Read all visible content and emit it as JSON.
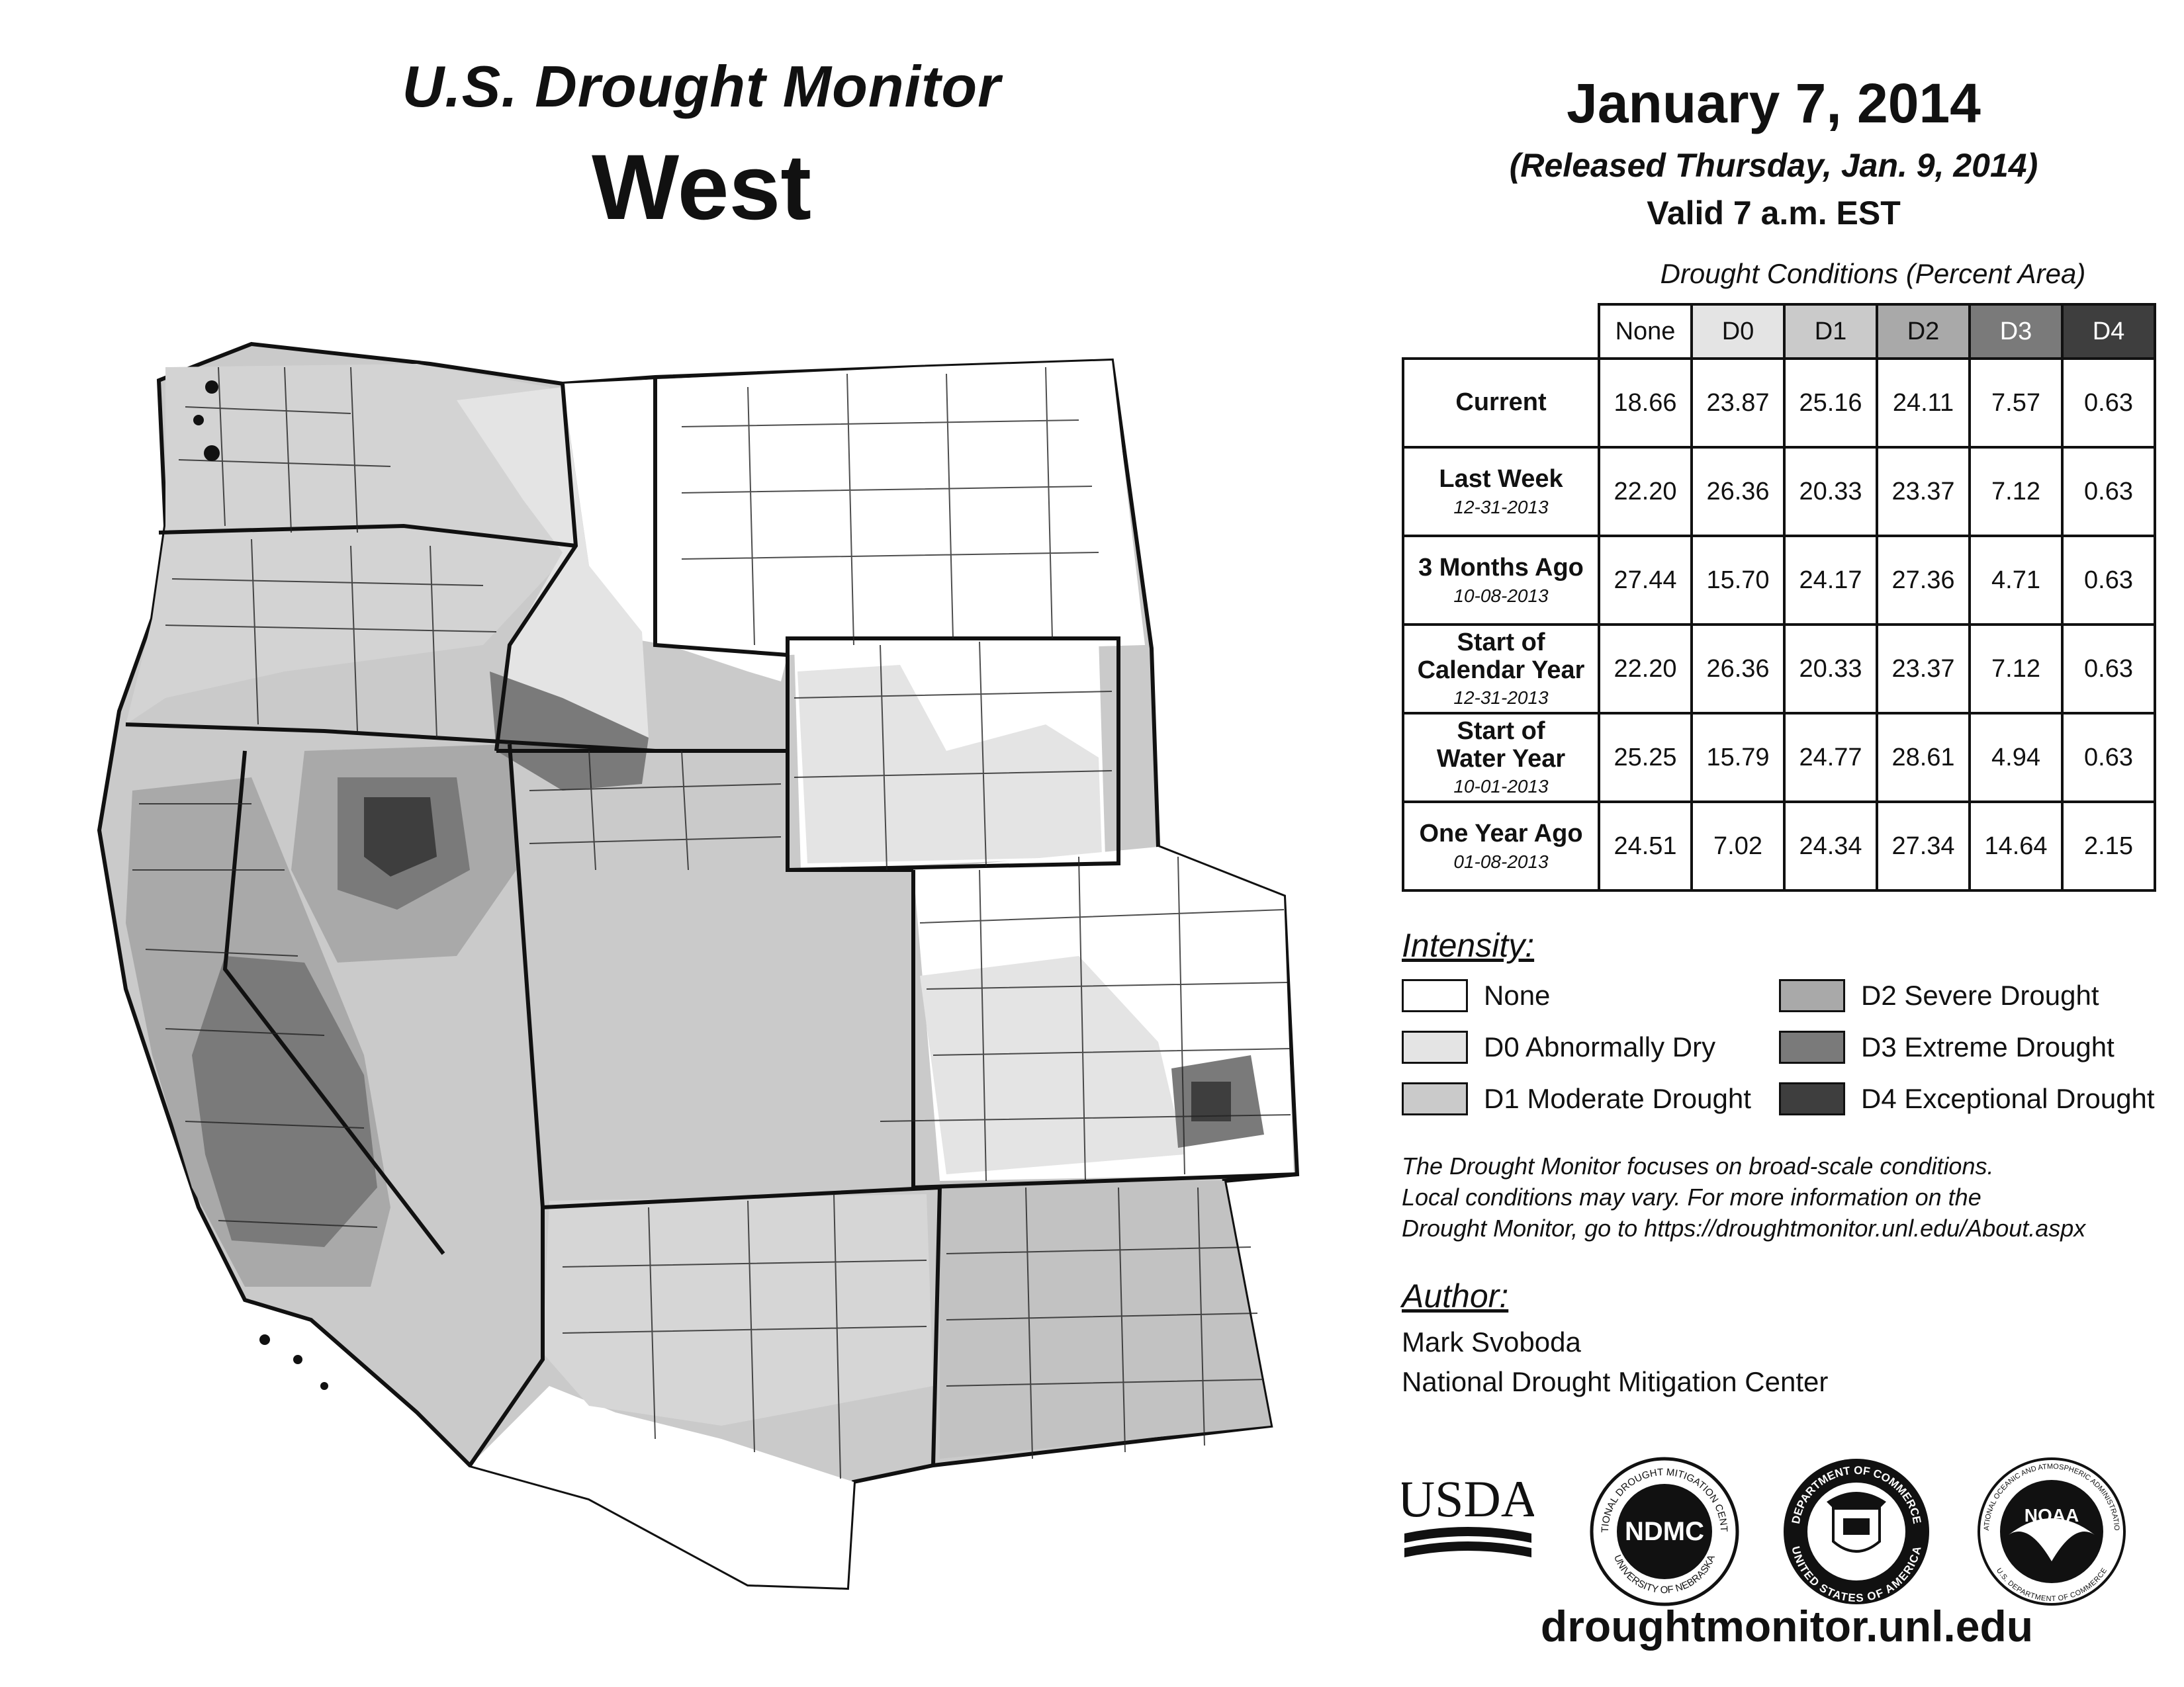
{
  "header": {
    "subtitle": "U.S. Drought Monitor",
    "region": "West"
  },
  "date": {
    "main": "January 7, 2014",
    "released": "(Released Thursday, Jan. 9, 2014)",
    "valid": "Valid 7 a.m. EST"
  },
  "table": {
    "caption": "Drought Conditions (Percent Area)",
    "columns": [
      "None",
      "D0",
      "D1",
      "D2",
      "D3",
      "D4"
    ],
    "rows": [
      {
        "label": "Current",
        "date": "",
        "values": [
          "18.66",
          "23.87",
          "25.16",
          "24.11",
          "7.57",
          "0.63"
        ]
      },
      {
        "label": "Last Week",
        "date": "12-31-2013",
        "values": [
          "22.20",
          "26.36",
          "20.33",
          "23.37",
          "7.12",
          "0.63"
        ]
      },
      {
        "label": "3 Months Ago",
        "date": "10-08-2013",
        "values": [
          "27.44",
          "15.70",
          "24.17",
          "27.36",
          "4.71",
          "0.63"
        ]
      },
      {
        "label_line1": "Start of",
        "label_line2": "Calendar Year",
        "date": "12-31-2013",
        "values": [
          "22.20",
          "26.36",
          "20.33",
          "23.37",
          "7.12",
          "0.63"
        ]
      },
      {
        "label_line1": "Start of",
        "label_line2": "Water Year",
        "date": "10-01-2013",
        "values": [
          "25.25",
          "15.79",
          "24.77",
          "28.61",
          "4.94",
          "0.63"
        ]
      },
      {
        "label": "One Year Ago",
        "date": "01-08-2013",
        "values": [
          "24.51",
          "7.02",
          "24.34",
          "27.34",
          "14.64",
          "2.15"
        ]
      }
    ]
  },
  "legend": {
    "title": "Intensity:",
    "items": [
      {
        "label": "None",
        "color": "#ffffff"
      },
      {
        "label": "D0 Abnormally Dry",
        "color": "#e4e4e4"
      },
      {
        "label": "D1 Moderate Drought",
        "color": "#cacaca"
      },
      {
        "label": "D2 Severe Drought",
        "color": "#a9a9a9"
      },
      {
        "label": "D3 Extreme Drought",
        "color": "#7a7a7a"
      },
      {
        "label": "D4 Exceptional Drought",
        "color": "#3e3e3e"
      }
    ]
  },
  "note": {
    "line1": "The Drought Monitor focuses on broad-scale conditions.",
    "line2": "Local conditions may vary. For more information on the",
    "line3": "Drought Monitor, go to https://droughtmonitor.unl.edu/About.aspx"
  },
  "author": {
    "title": "Author:",
    "name": "Mark Svoboda",
    "org": "National Drought Mitigation Center"
  },
  "logos": {
    "usda": "USDA",
    "ndmc": "NDMC",
    "ndmc_ring_top": "NATIONAL DROUGHT MITIGATION CENTER",
    "ndmc_ring_bottom": "UNIVERSITY OF NEBRASKA",
    "commerce_ring_top": "DEPARTMENT OF COMMERCE",
    "commerce_ring_bottom": "UNITED STATES OF AMERICA",
    "noaa": "NOAA",
    "noaa_ring_top": "NATIONAL OCEANIC AND ATMOSPHERIC ADMINISTRATION",
    "noaa_ring_bottom": "U.S. DEPARTMENT OF COMMERCE"
  },
  "website": "droughtmonitor.unl.edu"
}
